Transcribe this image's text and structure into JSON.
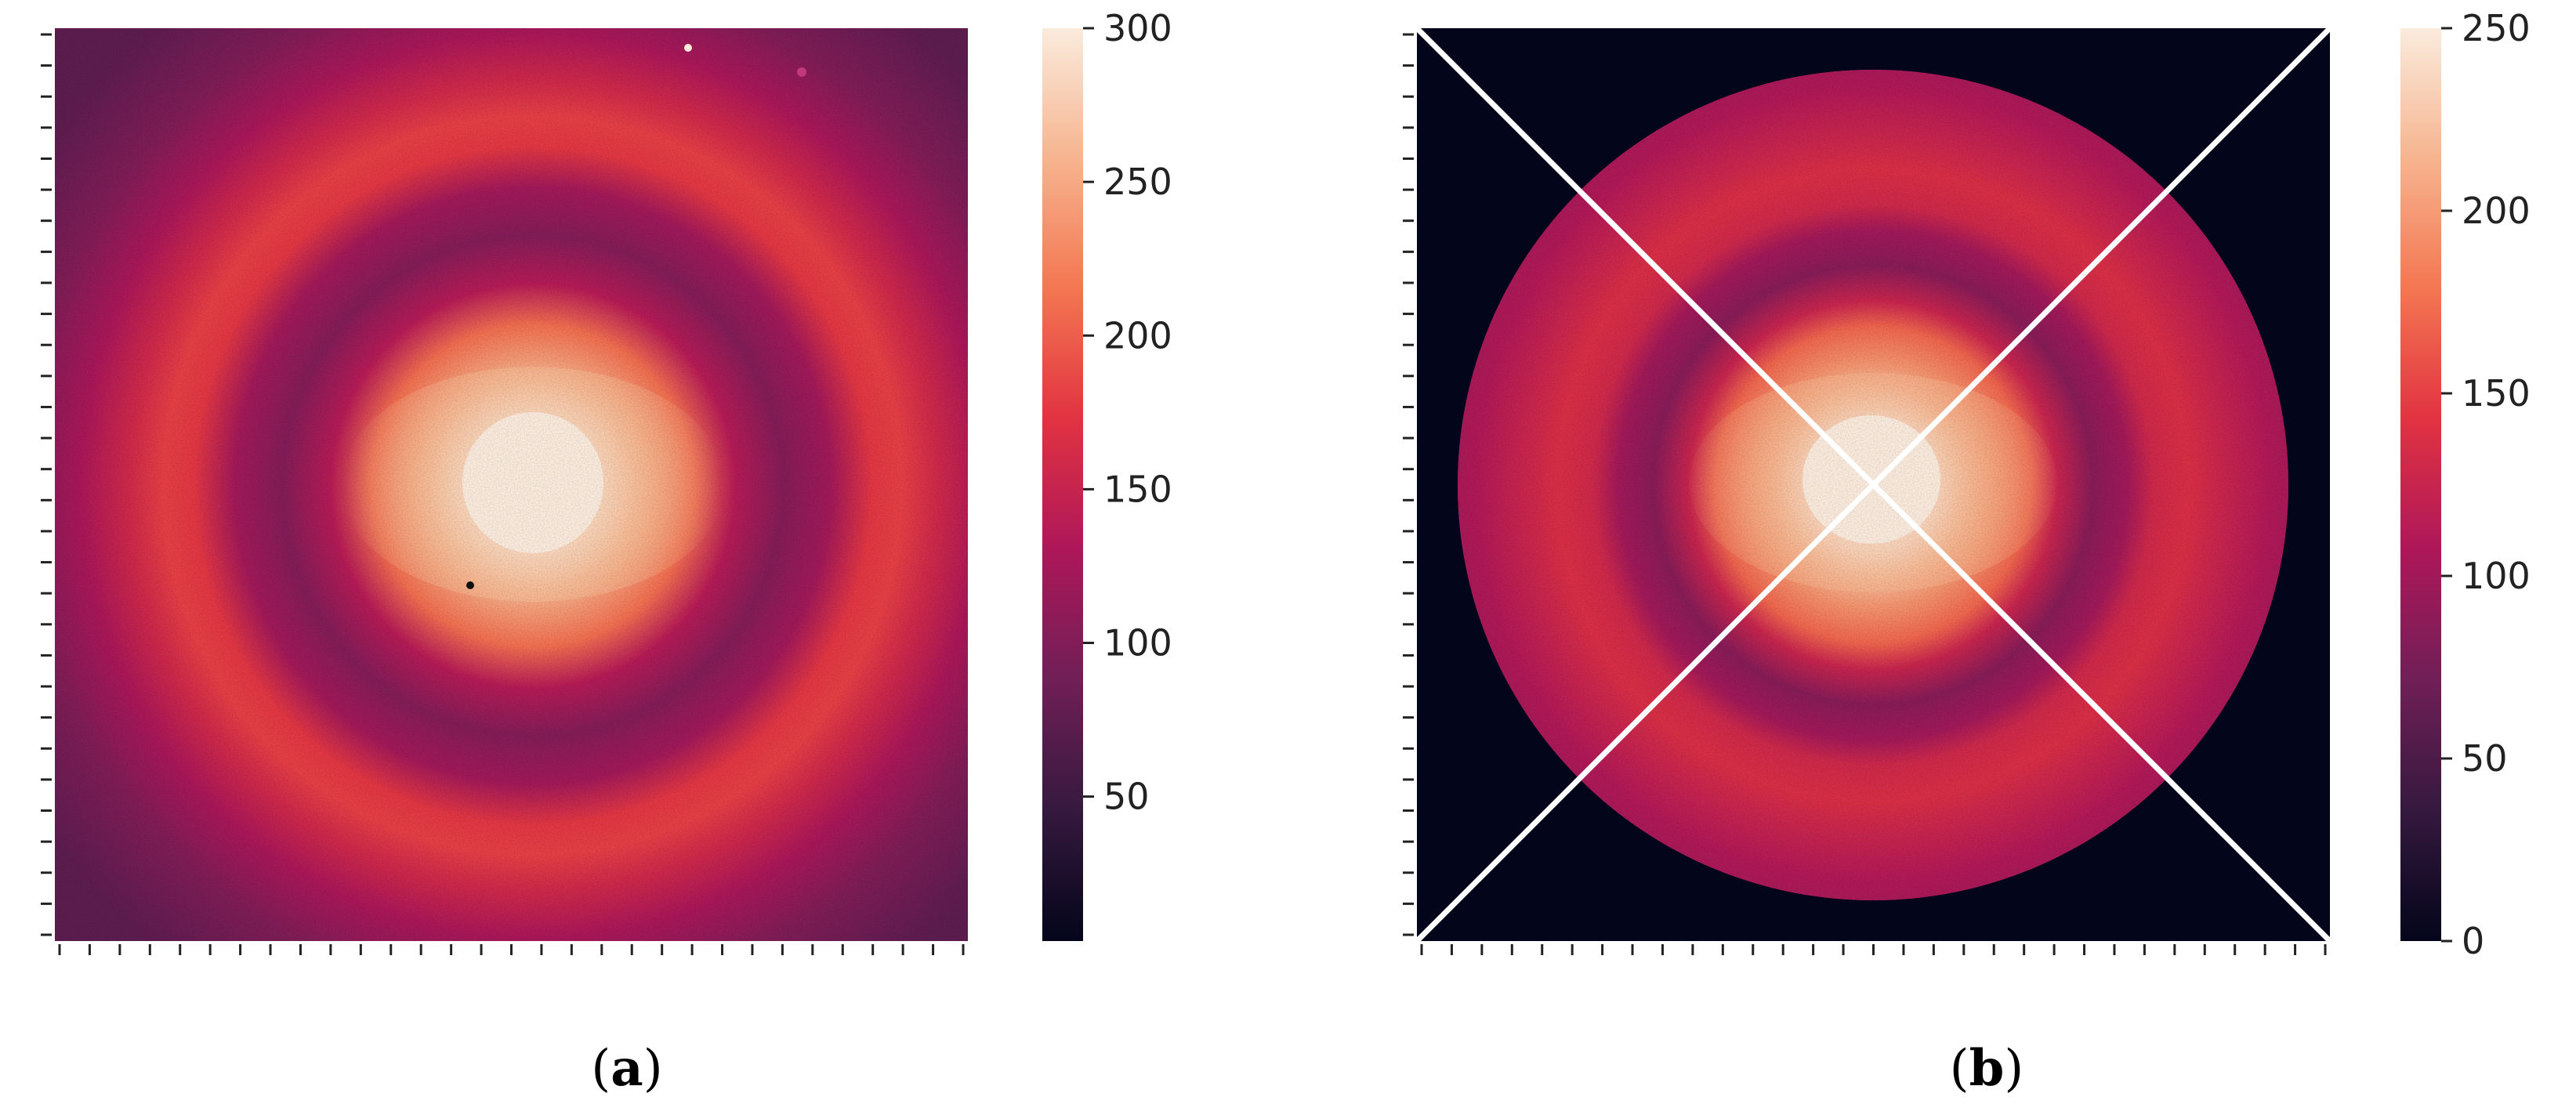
{
  "chart_data": [
    {
      "type": "heatmap",
      "panel_label": "a",
      "description_colormap": "rocket",
      "colorbar": {
        "ticks": [
          50,
          100,
          150,
          200,
          250,
          300
        ],
        "range": [
          3,
          300
        ]
      },
      "x_tick_count": 31,
      "y_tick_count": 30,
      "tick_labels_shown": false,
      "overlay_lines": false,
      "dead_pixels": true
    },
    {
      "type": "heatmap",
      "panel_label": "b",
      "description_colormap": "rocket",
      "colorbar": {
        "ticks": [
          0,
          50,
          100,
          150,
          200,
          250
        ],
        "range": [
          0,
          250
        ]
      },
      "x_tick_count": 31,
      "y_tick_count": 30,
      "tick_labels_shown": false,
      "mask": "circle",
      "overlay_lines": true,
      "overlay_color": "#ffffff"
    }
  ],
  "colors": {
    "colormap_stops": [
      "#03051a",
      "#35193e",
      "#701f57",
      "#ad1759",
      "#e13342",
      "#f37651",
      "#f6b48f",
      "#faebdd"
    ],
    "mask_color": "#03051a",
    "line_color": "#ffffff"
  }
}
